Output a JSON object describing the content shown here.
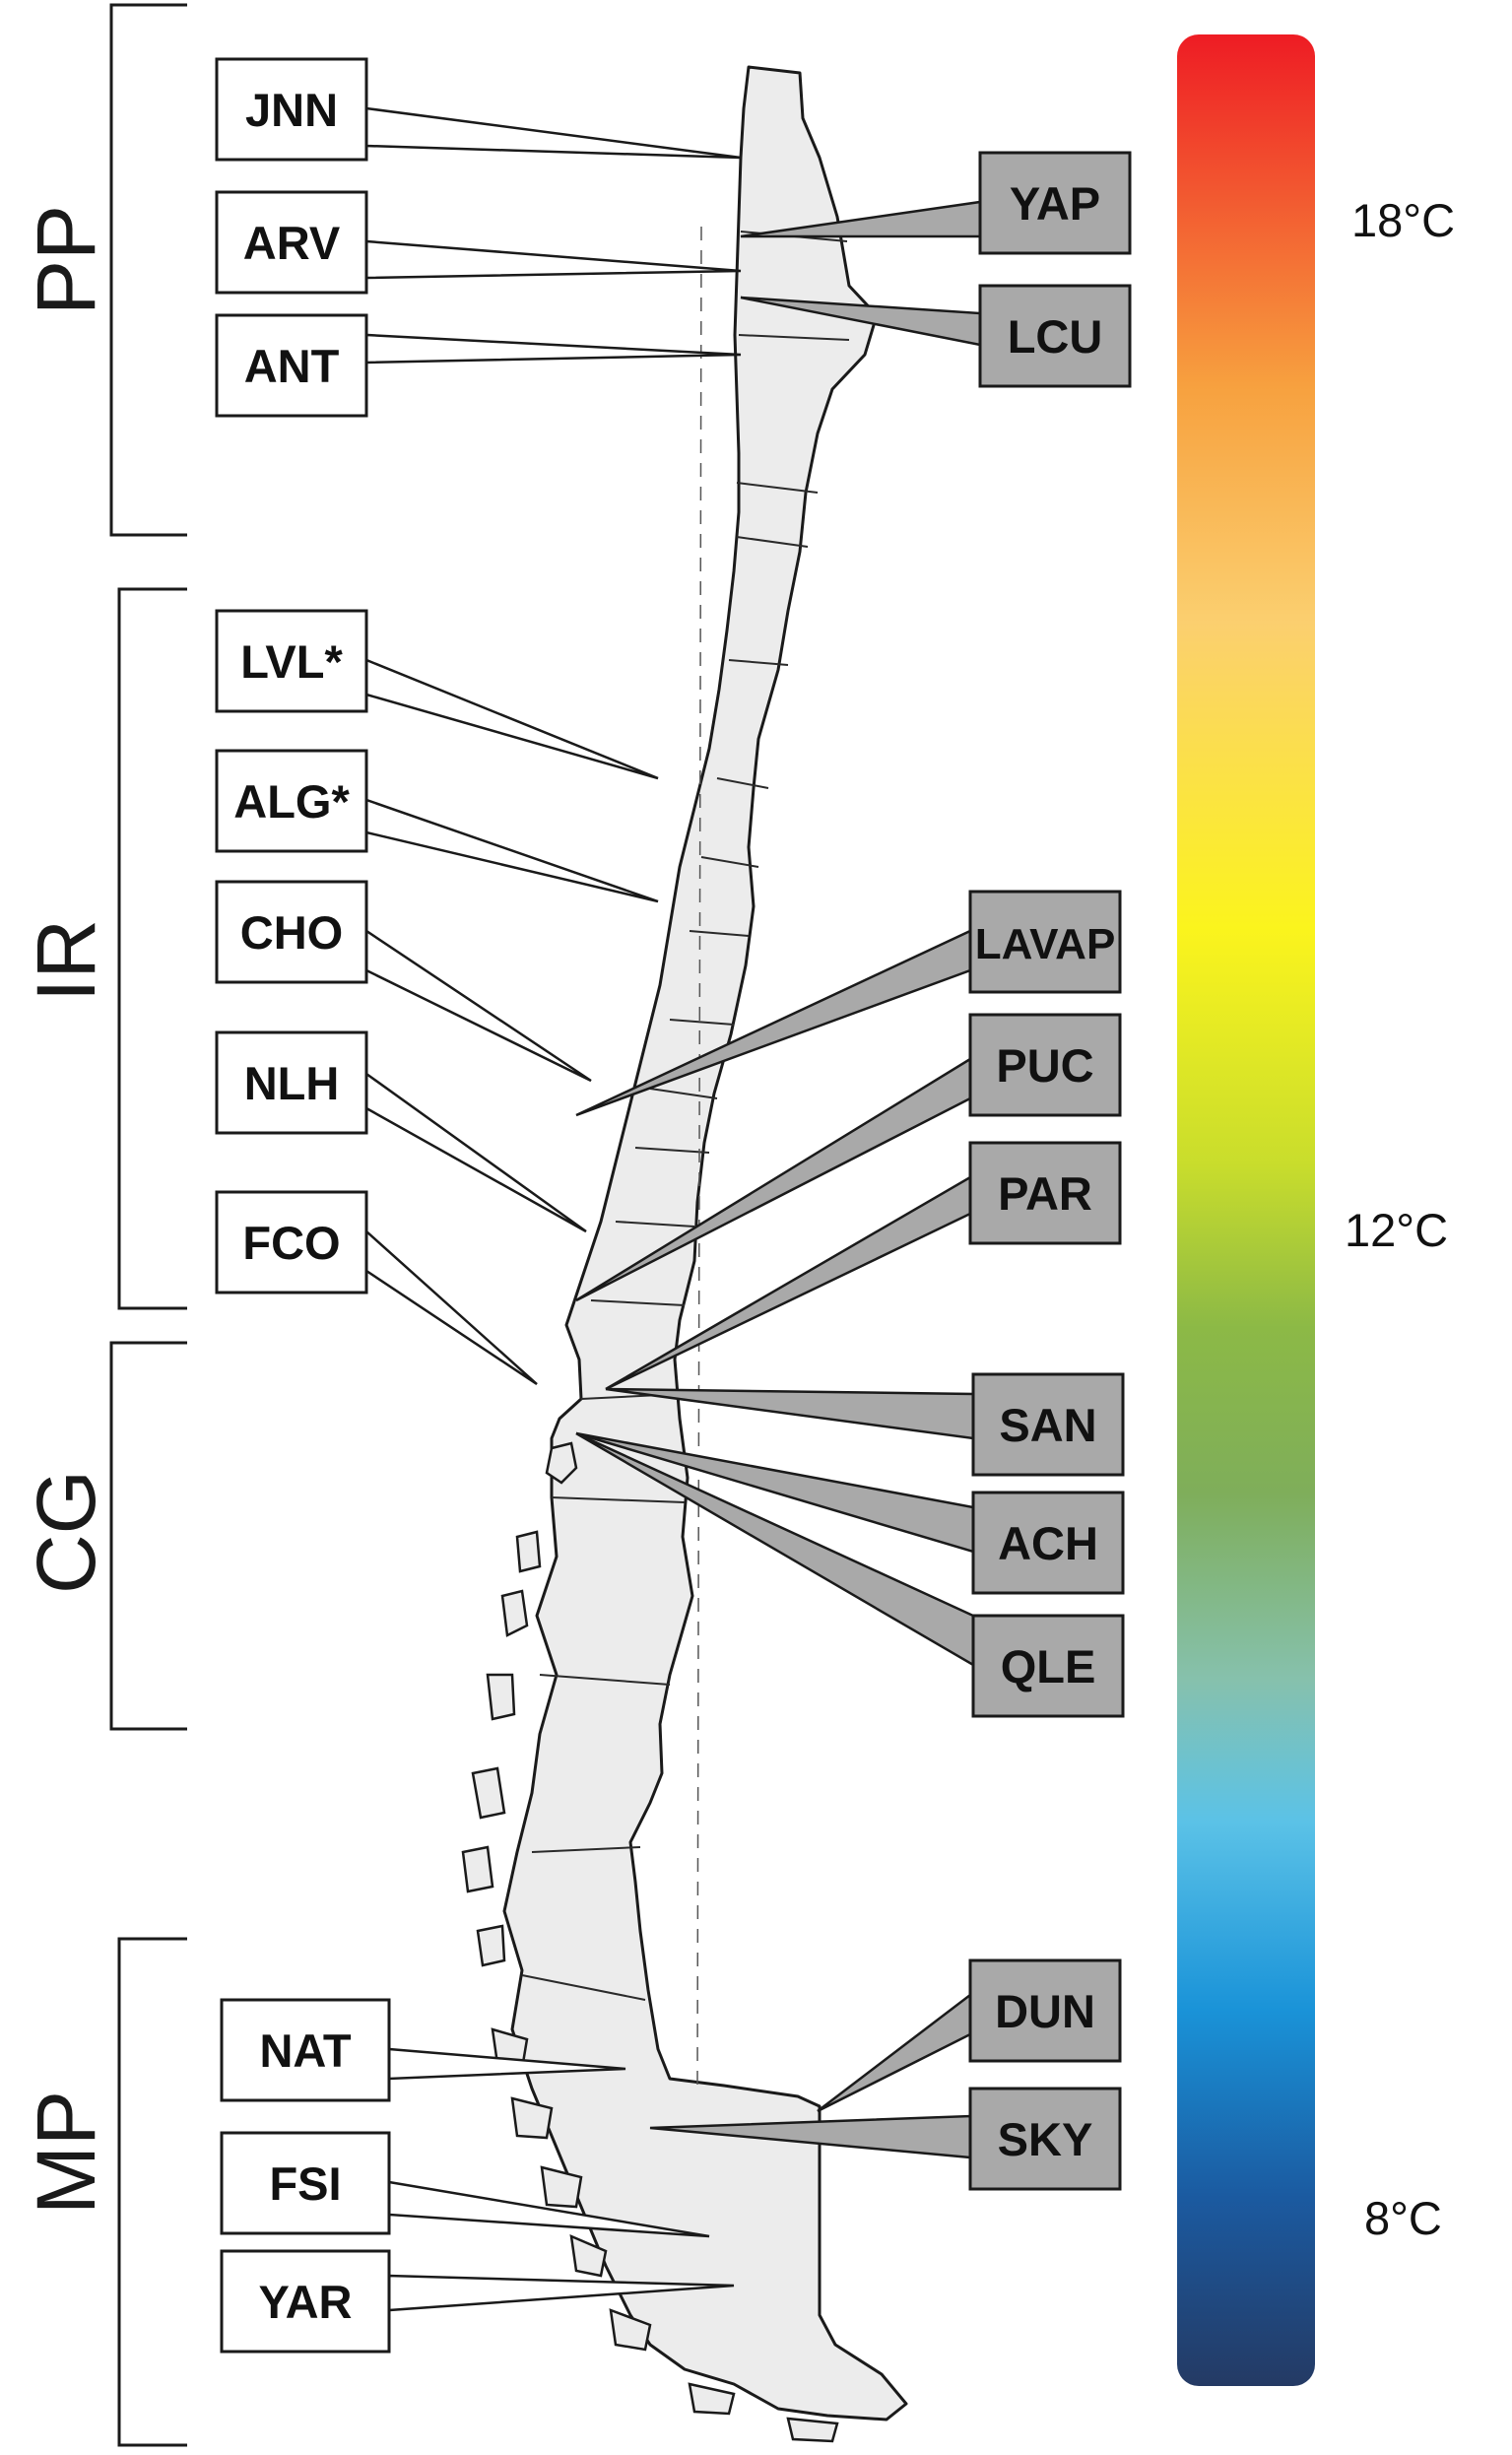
{
  "regions": [
    {
      "id": "pp",
      "label": "PP"
    },
    {
      "id": "ir",
      "label": "IR"
    },
    {
      "id": "cg",
      "label": "CG"
    },
    {
      "id": "mp",
      "label": "MP"
    }
  ],
  "sites_left": [
    {
      "id": "jnn",
      "label": "JNN"
    },
    {
      "id": "arv",
      "label": "ARV"
    },
    {
      "id": "ant",
      "label": "ANT"
    },
    {
      "id": "lvl",
      "label": "LVL*"
    },
    {
      "id": "alg",
      "label": "ALG*"
    },
    {
      "id": "cho",
      "label": "CHO"
    },
    {
      "id": "nlh",
      "label": "NLH"
    },
    {
      "id": "fco",
      "label": "FCO"
    },
    {
      "id": "nat",
      "label": "NAT"
    },
    {
      "id": "fsi",
      "label": "FSI"
    },
    {
      "id": "yar",
      "label": "YAR"
    }
  ],
  "sites_right": [
    {
      "id": "yap",
      "label": "YAP"
    },
    {
      "id": "lcu",
      "label": "LCU"
    },
    {
      "id": "lavap",
      "label": "LAVAP"
    },
    {
      "id": "puc",
      "label": "PUC"
    },
    {
      "id": "par",
      "label": "PAR"
    },
    {
      "id": "san",
      "label": "SAN"
    },
    {
      "id": "ach",
      "label": "ACH"
    },
    {
      "id": "qle",
      "label": "QLE"
    },
    {
      "id": "dun",
      "label": "DUN"
    },
    {
      "id": "sky",
      "label": "SKY"
    }
  ],
  "colorbar": {
    "labels": [
      "18°C",
      "12°C",
      "8°C"
    ],
    "colors": {
      "top": "#ee1c24",
      "orange": "#f7a13f",
      "light_orange": "#fbcf6f",
      "yellow": "#fbf41d",
      "yellow_green": "#c9dd2c",
      "green": "#8cb946",
      "green_gray": "#7fae5a",
      "teal": "#86c1ad",
      "light_blue": "#5bc2e7",
      "blue": "#1a93d8",
      "dark_blue": "#1b5aa0",
      "navy": "#243a64"
    }
  },
  "colors": {
    "left_box_fill": "#ffffff",
    "right_box_fill": "#a9a9a9",
    "map_fill": "#ececec",
    "outline": "#1a1a1a"
  }
}
